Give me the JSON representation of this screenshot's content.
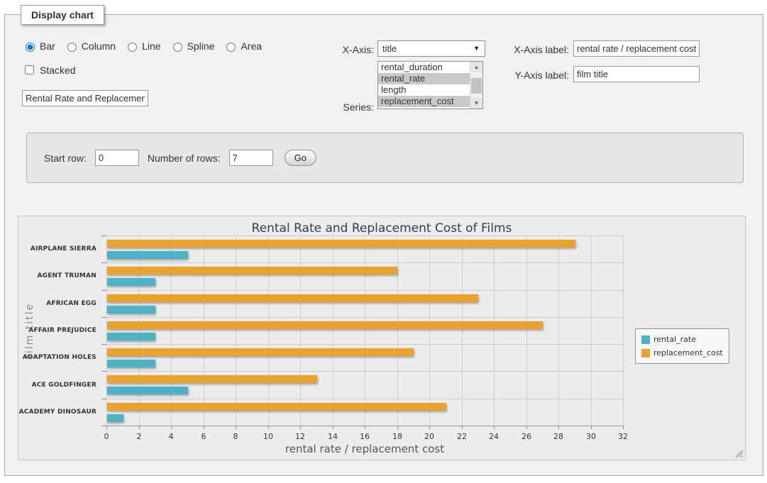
{
  "fieldset": {
    "legend": "Display chart"
  },
  "chart_type_options": [
    {
      "label": "Bar",
      "checked": true
    },
    {
      "label": "Column",
      "checked": false
    },
    {
      "label": "Line",
      "checked": false
    },
    {
      "label": "Spline",
      "checked": false
    },
    {
      "label": "Area",
      "checked": false
    }
  ],
  "stacked": {
    "label": "Stacked",
    "checked": false
  },
  "title_input": {
    "value": "Rental Rate and Replacement Cost of Films"
  },
  "x_axis": {
    "label": "X-Axis:",
    "selected": "title"
  },
  "series_select": {
    "label": "Series:",
    "options": [
      {
        "label": "rental_duration",
        "selected": false
      },
      {
        "label": "rental_rate",
        "selected": true
      },
      {
        "label": "length",
        "selected": false
      },
      {
        "label": "replacement_cost",
        "selected": true
      }
    ]
  },
  "x_axis_label": {
    "label": "X-Axis label:",
    "value": "rental rate / replacement cost"
  },
  "y_axis_label": {
    "label": "Y-Axis label:",
    "value": "film title"
  },
  "row_controls": {
    "start_row_label": "Start row:",
    "start_row_value": "0",
    "num_rows_label": "Number of rows:",
    "num_rows_value": "7",
    "go_label": "Go"
  },
  "chart_data": {
    "type": "bar",
    "title": "Rental Rate and Replacement Cost of Films",
    "xlabel": "rental rate / replacement cost",
    "ylabel": "film title",
    "categories": [
      "AIRPLANE SIERRA",
      "AGENT TRUMAN",
      "AFRICAN EGG",
      "AFFAIR PREJUDICE",
      "ADAPTATION HOLES",
      "ACE GOLDFINGER",
      "ACADEMY DINOSAUR"
    ],
    "series": [
      {
        "name": "rental_rate",
        "color": "#4cb2c6",
        "values": [
          4.99,
          2.99,
          2.99,
          2.99,
          2.99,
          4.99,
          0.99
        ]
      },
      {
        "name": "replacement_cost",
        "color": "#eca32e",
        "values": [
          28.99,
          17.99,
          22.99,
          26.99,
          18.99,
          12.99,
          20.99
        ]
      }
    ],
    "xlim": [
      0,
      32
    ],
    "xtick_step": 2,
    "grid": true,
    "legend_position": "right"
  }
}
